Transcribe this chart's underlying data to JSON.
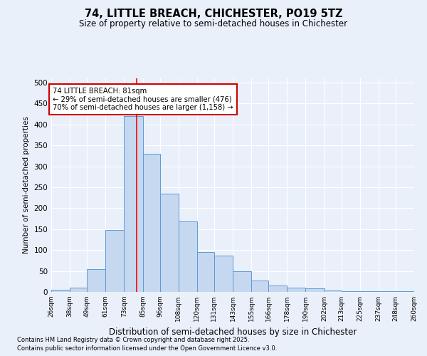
{
  "title1": "74, LITTLE BREACH, CHICHESTER, PO19 5TZ",
  "title2": "Size of property relative to semi-detached houses in Chichester",
  "xlabel": "Distribution of semi-detached houses by size in Chichester",
  "ylabel": "Number of semi-detached properties",
  "categories": [
    "26sqm",
    "38sqm",
    "49sqm",
    "61sqm",
    "73sqm",
    "85sqm",
    "96sqm",
    "108sqm",
    "120sqm",
    "131sqm",
    "143sqm",
    "155sqm",
    "166sqm",
    "178sqm",
    "190sqm",
    "202sqm",
    "213sqm",
    "225sqm",
    "237sqm",
    "248sqm",
    "260sqm"
  ],
  "bar_heights": [
    5,
    10,
    55,
    148,
    420,
    330,
    235,
    168,
    95,
    86,
    50,
    27,
    15,
    10,
    8,
    3,
    2,
    1,
    1,
    1,
    0
  ],
  "bar_color": "#c5d8f0",
  "bar_edge_color": "#5b9bd5",
  "vline_x": 81,
  "annotation_text": "74 LITTLE BREACH: 81sqm\n← 29% of semi-detached houses are smaller (476)\n70% of semi-detached houses are larger (1,158) →",
  "annotation_box_color": "#ffffff",
  "annotation_box_edge": "#cc0000",
  "footnote1": "Contains HM Land Registry data © Crown copyright and database right 2025.",
  "footnote2": "Contains public sector information licensed under the Open Government Licence v3.0.",
  "background_color": "#eaf0fa",
  "ylim": [
    0,
    510
  ],
  "yticks": [
    0,
    50,
    100,
    150,
    200,
    250,
    300,
    350,
    400,
    450,
    500
  ],
  "bin_edges": [
    26,
    38,
    49,
    61,
    73,
    85,
    96,
    108,
    120,
    131,
    143,
    155,
    166,
    178,
    190,
    202,
    213,
    225,
    237,
    248,
    260
  ]
}
